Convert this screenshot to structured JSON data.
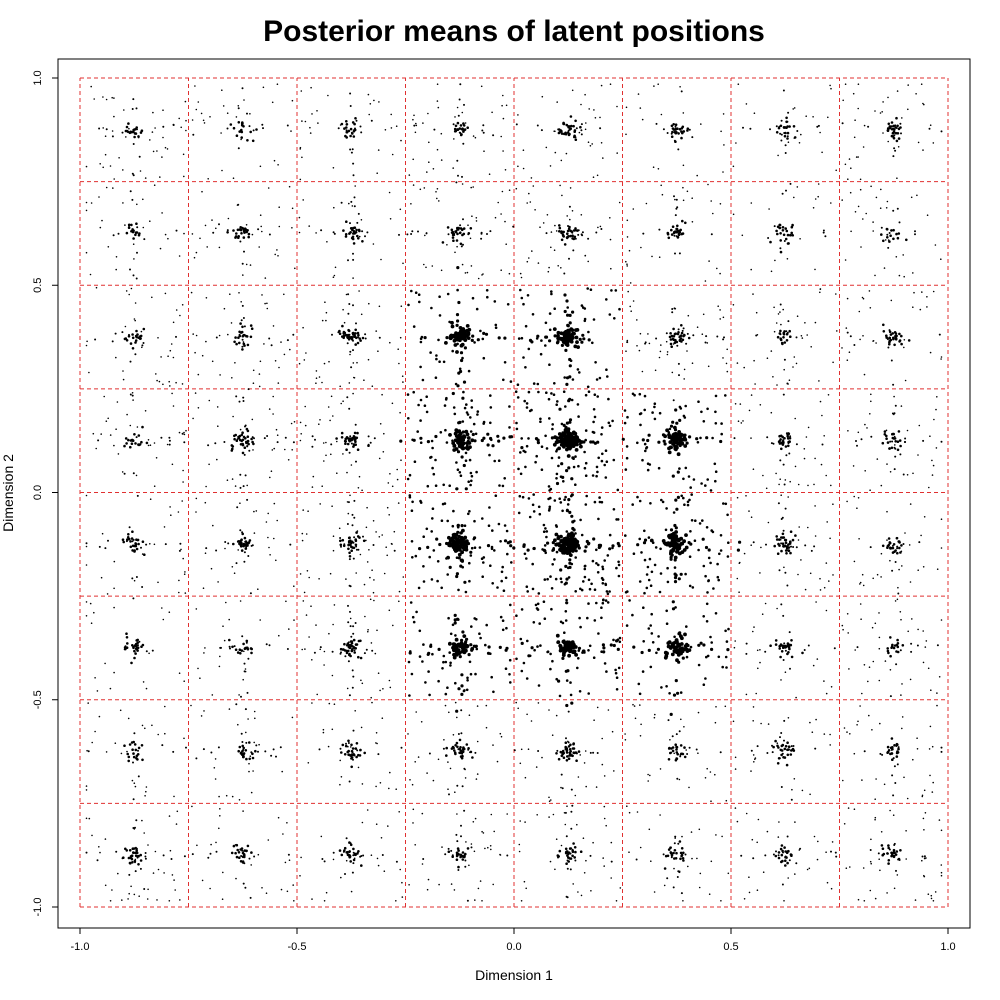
{
  "chart_data": {
    "type": "scatter",
    "title": "Posterior means of latent positions",
    "xlabel": "Dimension 1",
    "ylabel": "Dimension 2",
    "xlim": [
      -1.0,
      1.0
    ],
    "ylim": [
      -1.0,
      1.0
    ],
    "x_ticks": [
      "-1.0",
      "-0.5",
      "0.0",
      "0.5",
      "1.0"
    ],
    "x_tick_values": [
      -1.0,
      -0.5,
      0.0,
      0.5,
      1.0
    ],
    "y_ticks": [
      "-1.0",
      "-0.5",
      "0.0",
      "0.5",
      "1.0"
    ],
    "y_tick_values": [
      -1.0,
      -0.5,
      0.0,
      0.5,
      1.0
    ],
    "grid": true,
    "grid_lines": [
      -1.0,
      -0.75,
      -0.5,
      -0.25,
      0.0,
      0.25,
      0.5,
      0.75,
      1.0
    ],
    "grid_color": "#e03030",
    "point_color": "#000000",
    "cluster_centers_x": [
      -0.875,
      -0.625,
      -0.375,
      -0.125,
      0.125,
      0.375,
      0.625,
      0.875
    ],
    "cluster_centers_y": [
      0.875,
      0.625,
      0.375,
      0.125,
      -0.125,
      -0.375,
      -0.625,
      -0.875
    ],
    "cluster_density": [
      [
        0.7,
        0.5,
        0.6,
        0.7,
        0.7,
        0.5,
        0.5,
        0.7
      ],
      [
        0.5,
        0.6,
        0.6,
        0.8,
        0.8,
        0.6,
        0.5,
        0.5
      ],
      [
        0.6,
        0.7,
        0.9,
        1.2,
        1.3,
        0.9,
        0.6,
        0.6
      ],
      [
        0.6,
        0.8,
        0.9,
        1.5,
        2.2,
        1.3,
        0.7,
        0.7
      ],
      [
        0.6,
        0.7,
        0.9,
        1.6,
        2.3,
        1.6,
        0.8,
        0.6
      ],
      [
        0.5,
        0.5,
        0.9,
        1.3,
        1.3,
        1.1,
        0.6,
        0.6
      ],
      [
        0.5,
        0.6,
        0.6,
        0.7,
        0.8,
        0.6,
        0.6,
        0.6
      ],
      [
        0.8,
        0.6,
        0.6,
        0.7,
        0.7,
        0.6,
        0.6,
        0.7
      ]
    ]
  }
}
